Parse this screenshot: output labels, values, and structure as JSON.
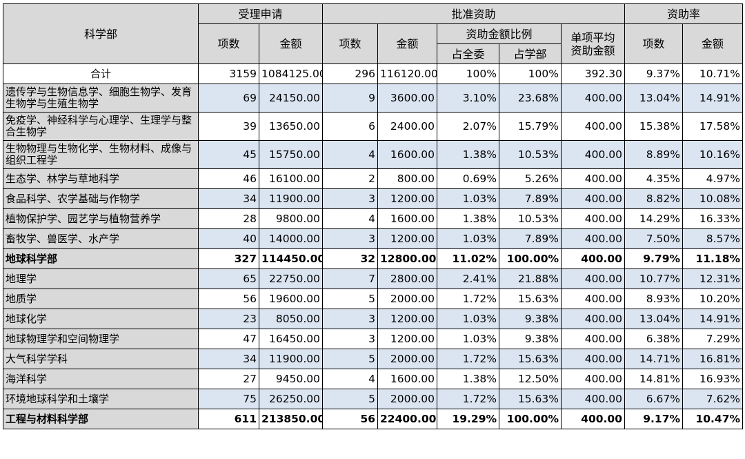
{
  "headers": {
    "dept": "科学部",
    "received": "受理申请",
    "approved": "批准资助",
    "rate": "资助率",
    "count": "项数",
    "amount": "金额",
    "ratio": "资助金额比例",
    "of_all": "占全委",
    "of_dept": "占学部",
    "avg_line1": "单项平均",
    "avg_line2": "资助金额",
    "rate_count": "项数",
    "rate_amount": "金额"
  },
  "rows": [
    {
      "name": "合计",
      "rc": "3159",
      "ra": "1084125.00",
      "ac": "296",
      "aa": "116120.00",
      "pa": "100%",
      "pd": "100%",
      "avg": "392.30",
      "rn": "9.37%",
      "rm": "10.71%"
    },
    {
      "name": "遗传学与生物信息学、细胞生物学、发育生物学与生殖生物学",
      "rc": "69",
      "ra": "24150.00",
      "ac": "9",
      "aa": "3600.00",
      "pa": "3.10%",
      "pd": "23.68%",
      "avg": "400.00",
      "rn": "13.04%",
      "rm": "14.91%"
    },
    {
      "name": "免疫学、神经科学与心理学、生理学与整合生物学",
      "rc": "39",
      "ra": "13650.00",
      "ac": "6",
      "aa": "2400.00",
      "pa": "2.07%",
      "pd": "15.79%",
      "avg": "400.00",
      "rn": "15.38%",
      "rm": "17.58%"
    },
    {
      "name": "生物物理与生物化学、生物材料、成像与组织工程学",
      "rc": "45",
      "ra": "15750.00",
      "ac": "4",
      "aa": "1600.00",
      "pa": "1.38%",
      "pd": "10.53%",
      "avg": "400.00",
      "rn": "8.89%",
      "rm": "10.16%"
    },
    {
      "name": "生态学、林学与草地科学",
      "rc": "46",
      "ra": "16100.00",
      "ac": "2",
      "aa": "800.00",
      "pa": "0.69%",
      "pd": "5.26%",
      "avg": "400.00",
      "rn": "4.35%",
      "rm": "4.97%"
    },
    {
      "name": "食品科学、农学基础与作物学",
      "rc": "34",
      "ra": "11900.00",
      "ac": "3",
      "aa": "1200.00",
      "pa": "1.03%",
      "pd": "7.89%",
      "avg": "400.00",
      "rn": "8.82%",
      "rm": "10.08%"
    },
    {
      "name": "植物保护学、园艺学与植物营养学",
      "rc": "28",
      "ra": "9800.00",
      "ac": "4",
      "aa": "1600.00",
      "pa": "1.38%",
      "pd": "10.53%",
      "avg": "400.00",
      "rn": "14.29%",
      "rm": "16.33%"
    },
    {
      "name": "畜牧学、兽医学、水产学",
      "rc": "40",
      "ra": "14000.00",
      "ac": "3",
      "aa": "1200.00",
      "pa": "1.03%",
      "pd": "7.89%",
      "avg": "400.00",
      "rn": "7.50%",
      "rm": "8.57%"
    },
    {
      "name": "地球科学部",
      "rc": "327",
      "ra": "114450.00",
      "ac": "32",
      "aa": "12800.00",
      "pa": "11.02%",
      "pd": "100.00%",
      "avg": "400.00",
      "rn": "9.79%",
      "rm": "11.18%"
    },
    {
      "name": "地理学",
      "rc": "65",
      "ra": "22750.00",
      "ac": "7",
      "aa": "2800.00",
      "pa": "2.41%",
      "pd": "21.88%",
      "avg": "400.00",
      "rn": "10.77%",
      "rm": "12.31%"
    },
    {
      "name": "地质学",
      "rc": "56",
      "ra": "19600.00",
      "ac": "5",
      "aa": "2000.00",
      "pa": "1.72%",
      "pd": "15.63%",
      "avg": "400.00",
      "rn": "8.93%",
      "rm": "10.20%"
    },
    {
      "name": "地球化学",
      "rc": "23",
      "ra": "8050.00",
      "ac": "3",
      "aa": "1200.00",
      "pa": "1.03%",
      "pd": "9.38%",
      "avg": "400.00",
      "rn": "13.04%",
      "rm": "14.91%"
    },
    {
      "name": "地球物理学和空间物理学",
      "rc": "47",
      "ra": "16450.00",
      "ac": "3",
      "aa": "1200.00",
      "pa": "1.03%",
      "pd": "9.38%",
      "avg": "400.00",
      "rn": "6.38%",
      "rm": "7.29%"
    },
    {
      "name": "大气科学学科",
      "rc": "34",
      "ra": "11900.00",
      "ac": "5",
      "aa": "2000.00",
      "pa": "1.72%",
      "pd": "15.63%",
      "avg": "400.00",
      "rn": "14.71%",
      "rm": "16.81%"
    },
    {
      "name": "海洋科学",
      "rc": "27",
      "ra": "9450.00",
      "ac": "4",
      "aa": "1600.00",
      "pa": "1.38%",
      "pd": "12.50%",
      "avg": "400.00",
      "rn": "14.81%",
      "rm": "16.93%"
    },
    {
      "name": "环境地球科学和土壤学",
      "rc": "75",
      "ra": "26250.00",
      "ac": "5",
      "aa": "2000.00",
      "pa": "1.72%",
      "pd": "15.63%",
      "avg": "400.00",
      "rn": "6.67%",
      "rm": "7.62%"
    },
    {
      "name": "工程与材料科学部",
      "rc": "611",
      "ra": "213850.00",
      "ac": "56",
      "aa": "22400.00",
      "pa": "19.29%",
      "pd": "100.00%",
      "avg": "400.00",
      "rn": "9.17%",
      "rm": "10.47%"
    }
  ]
}
